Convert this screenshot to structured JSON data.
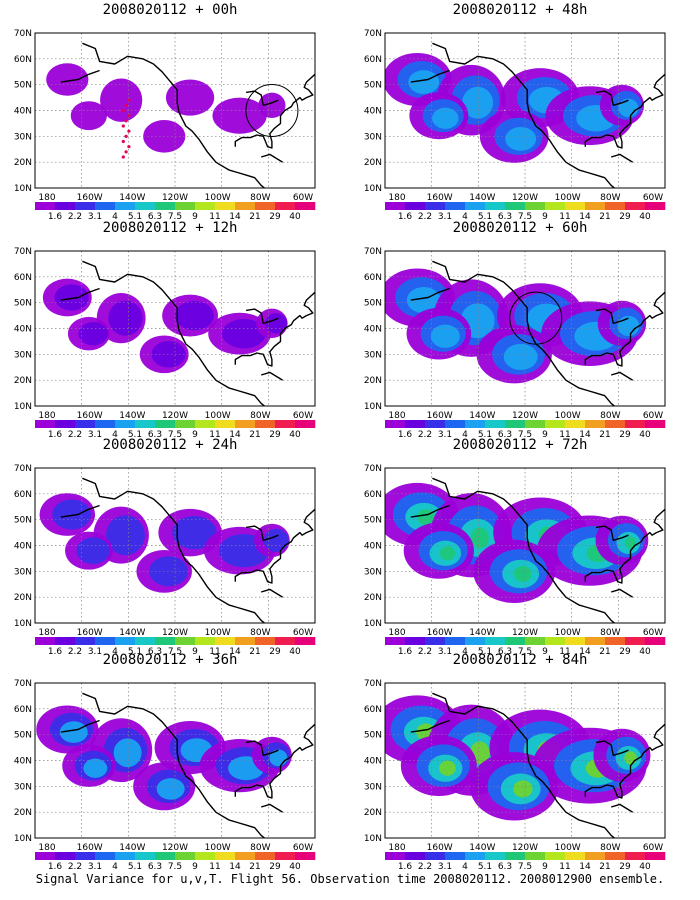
{
  "figure": {
    "caption": "Signal Variance for u,v,T. Flight 56. Observation time 2008020112. 2008012900 ensemble."
  },
  "map_axes": {
    "x_ticks": [
      "180",
      "160W",
      "140W",
      "120W",
      "100W",
      "80W",
      "60W"
    ],
    "x_range_deg": [
      -190,
      -60
    ],
    "y_ticks": [
      "10N",
      "20N",
      "30N",
      "40N",
      "50N",
      "60N",
      "70N"
    ],
    "y_range_deg": [
      10,
      70
    ],
    "grid": "dotted"
  },
  "colorbar": {
    "labels": [
      "1.6",
      "2.2",
      "3.1",
      "4",
      "5.1",
      "6.3",
      "7.5",
      "9",
      "11",
      "14",
      "21",
      "29",
      "40"
    ],
    "colors": [
      "#9b00d9",
      "#6a00e0",
      "#3a2ee8",
      "#1e66f0",
      "#1aa2f0",
      "#18c8c8",
      "#1ec878",
      "#6ed232",
      "#b4e61e",
      "#f0dc1e",
      "#f0a01e",
      "#f0642a",
      "#f01e50",
      "#e6007a"
    ]
  },
  "panels": [
    {
      "title": "2008020112 + 00h",
      "level": 0,
      "circle": {
        "lon": -80,
        "lat": 40
      },
      "obs": true
    },
    {
      "title": "2008020112 + 12h",
      "level": 1
    },
    {
      "title": "2008020112 + 24h",
      "level": 2
    },
    {
      "title": "2008020112 + 36h",
      "level": 3
    },
    {
      "title": "2008020112 + 48h",
      "level": 4
    },
    {
      "title": "2008020112 + 60h",
      "level": 5,
      "circle": {
        "lon": -120,
        "lat": 44
      }
    },
    {
      "title": "2008020112 + 72h",
      "level": 6
    },
    {
      "title": "2008020112 + 84h",
      "level": 7
    }
  ]
}
